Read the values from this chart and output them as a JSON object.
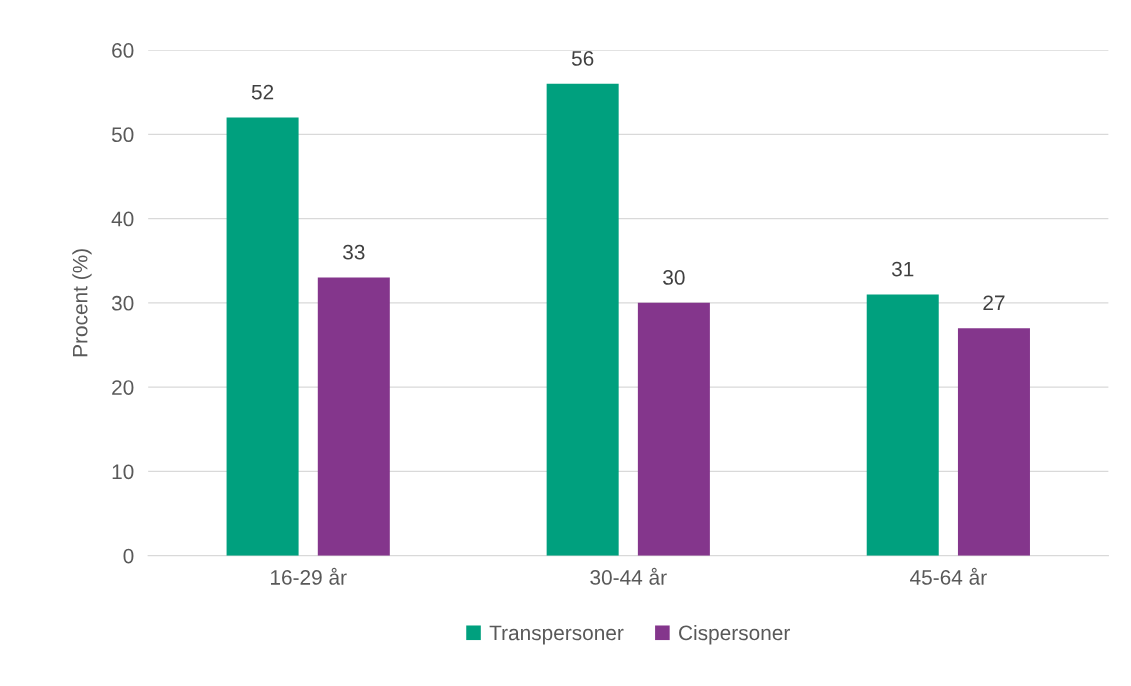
{
  "chart_data": {
    "type": "bar",
    "ylabel": "Procent (%)",
    "categories": [
      "16-29 år",
      "30-44 år",
      "45-64 år"
    ],
    "series": [
      {
        "name": "Transpersoner",
        "color": "#00a07e",
        "values": [
          52,
          56,
          31
        ]
      },
      {
        "name": "Cispersoner",
        "color": "#84368c",
        "values": [
          33,
          30,
          27
        ]
      }
    ],
    "ylim": [
      0,
      60
    ],
    "yticks": [
      0,
      10,
      20,
      30,
      40,
      50,
      60
    ],
    "grid": "y",
    "legend": "bottom",
    "data_labels": true
  }
}
